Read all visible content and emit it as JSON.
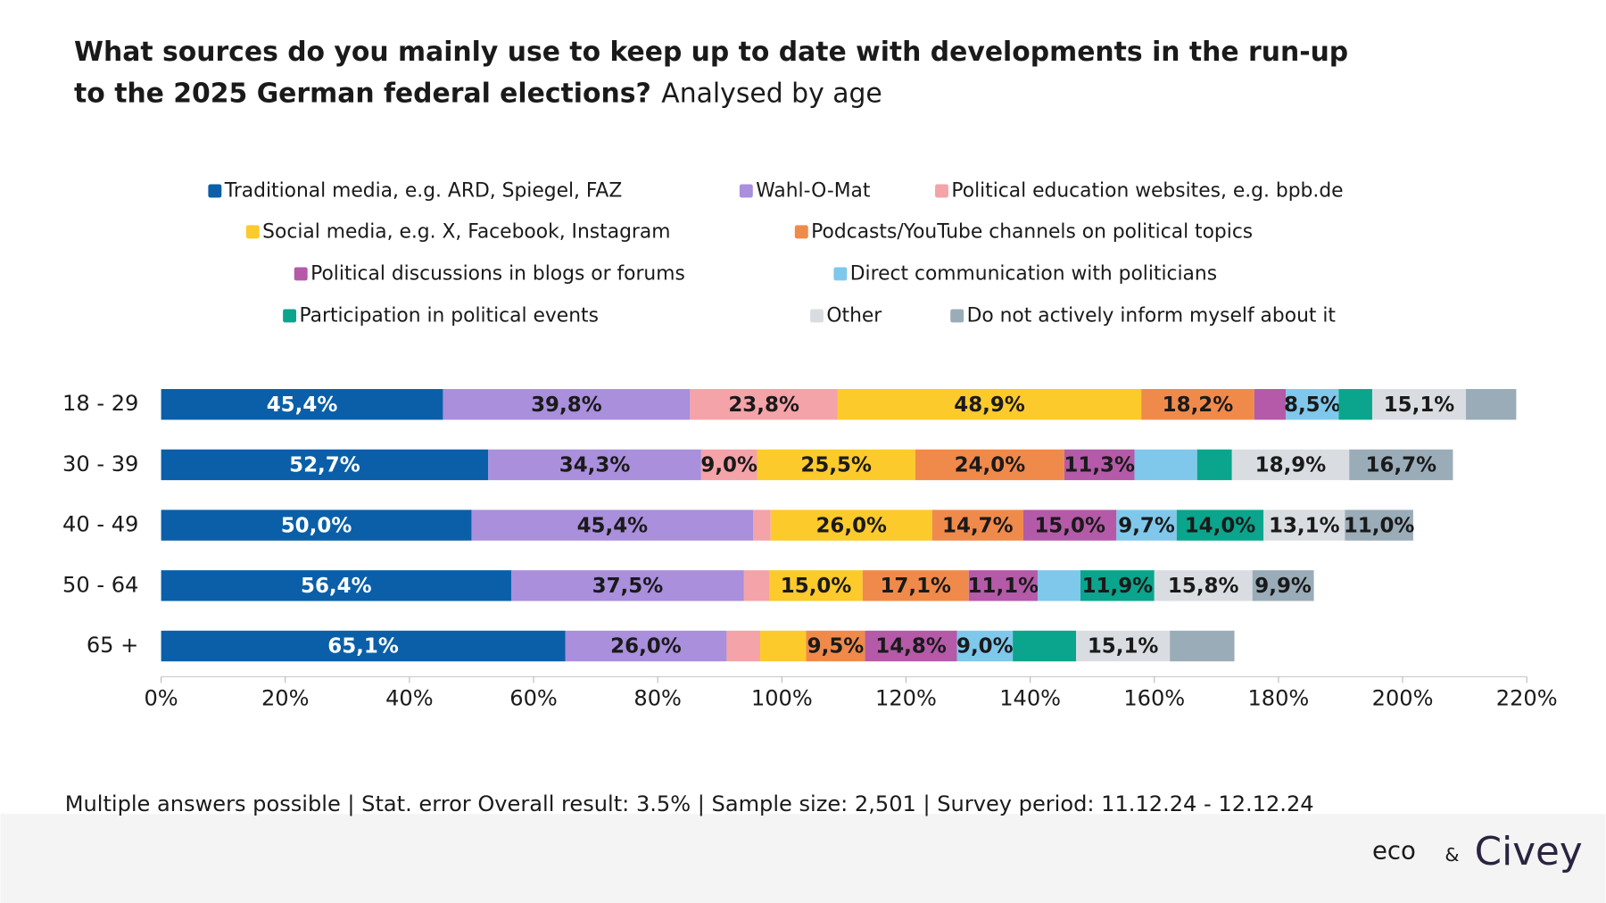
{
  "chart_data": {
    "type": "stacked_barh",
    "title_lines": [
      "What sources do you mainly use to keep up to date with developments in the run-up",
      "to the 2025 German federal elections?"
    ],
    "subtitle": "Analysed by age",
    "categories": [
      "18 - 29",
      "30 - 39",
      "40 - 49",
      "50 - 64",
      "65 +"
    ],
    "series": [
      {
        "name": "Traditional media, e.g. ARD, Spiegel, FAZ",
        "color": "#0a5fa8",
        "values": [
          45.4,
          52.7,
          50.0,
          56.4,
          65.1
        ],
        "value_labels": [
          "45,4%",
          "52,7%",
          "50,0%",
          "56,4%",
          "65,1%"
        ]
      },
      {
        "name": "Wahl-O-Mat",
        "color": "#a98fdc",
        "values": [
          39.8,
          34.3,
          45.4,
          37.5,
          26.0
        ],
        "value_labels": [
          "39,8%",
          "34,3%",
          "45,4%",
          "37,5%",
          "26,0%"
        ]
      },
      {
        "name": "Political education websites, e.g. bpb.de",
        "color": "#f4a3a8",
        "values": [
          23.8,
          9.0,
          2.8,
          4.1,
          5.4
        ],
        "value_labels": [
          "23,8%",
          "9,0%",
          null,
          null,
          null
        ]
      },
      {
        "name": "Social media, e.g. X, Facebook, Instagram",
        "color": "#fdca2c",
        "values": [
          48.9,
          25.5,
          26.0,
          15.0,
          7.4
        ],
        "value_labels": [
          "48,9%",
          "25,5%",
          "26,0%",
          "15,0%",
          null
        ]
      },
      {
        "name": "Podcasts/YouTube channels on political topics",
        "color": "#f08a4b",
        "values": [
          18.2,
          24.0,
          14.7,
          17.1,
          9.5
        ],
        "value_labels": [
          "18,2%",
          "24,0%",
          "14,7%",
          "17,1%",
          "9,5%"
        ]
      },
      {
        "name": "Political discussions in blogs or forums",
        "color": "#b45aa8",
        "values": [
          5.1,
          11.3,
          15.0,
          11.1,
          14.8
        ],
        "value_labels": [
          null,
          "11,3%",
          "15,0%",
          "11,1%",
          "14,8%"
        ]
      },
      {
        "name": "Direct communication with politicians",
        "color": "#7fc8ec",
        "values": [
          8.5,
          10.1,
          9.7,
          6.9,
          9.0
        ],
        "value_labels": [
          "8,5%",
          null,
          "9,7%",
          null,
          "9,0%"
        ]
      },
      {
        "name": "Participation in political events",
        "color": "#0aa58c",
        "values": [
          5.4,
          5.6,
          14.0,
          11.9,
          10.2
        ],
        "value_labels": [
          null,
          null,
          "14,0%",
          "11,9%",
          null
        ]
      },
      {
        "name": "Other",
        "color": "#d9dde1",
        "values": [
          15.1,
          18.9,
          13.1,
          15.8,
          15.1
        ],
        "value_labels": [
          "15,1%",
          "18,9%",
          "13,1%",
          "15,8%",
          "15,1%"
        ]
      },
      {
        "name": "Do not actively inform myself about it",
        "color": "#9aacb8",
        "values": [
          8.1,
          16.7,
          11.0,
          9.9,
          10.4
        ],
        "value_labels": [
          null,
          "16,7%",
          "11,0%",
          "9,9%",
          null
        ]
      }
    ],
    "xlim": [
      0,
      220
    ],
    "xticks": [
      {
        "value": 0,
        "label": "0%"
      },
      {
        "value": 20,
        "label": "20%"
      },
      {
        "value": 40,
        "label": "40%"
      },
      {
        "value": 60,
        "label": "60%"
      },
      {
        "value": 80,
        "label": "80%"
      },
      {
        "value": 100,
        "label": "100%"
      },
      {
        "value": 120,
        "label": "120%"
      },
      {
        "value": 140,
        "label": "140%"
      },
      {
        "value": 160,
        "label": "160%"
      },
      {
        "value": 180,
        "label": "180%"
      },
      {
        "value": 200,
        "label": "200%"
      },
      {
        "value": 220,
        "label": "220%"
      }
    ],
    "footnote": "Multiple answers possible | Stat. error Overall result: 3.5% | Sample size: 2,501 | Survey period: 11.12.24 - 12.12.24",
    "logos": [
      "eco",
      "&",
      "Civey"
    ]
  }
}
